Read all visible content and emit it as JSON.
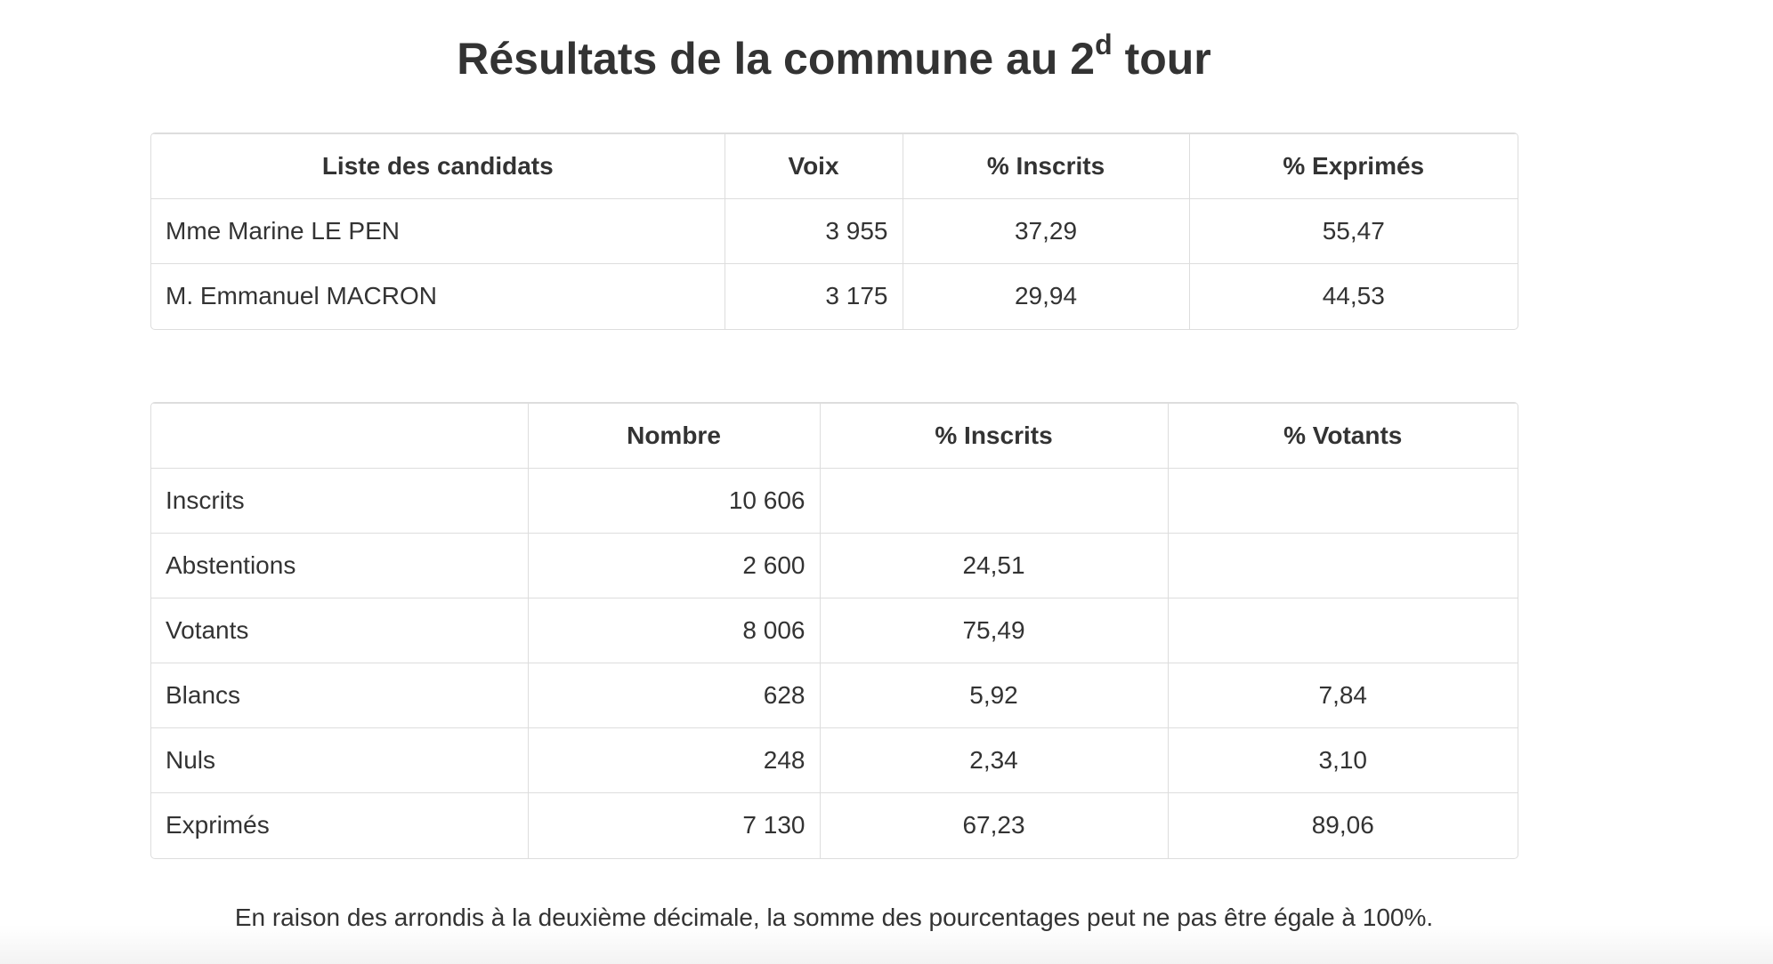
{
  "title": {
    "before": "Résultats de la commune au 2",
    "sup": "d",
    "after": " tour"
  },
  "candidates_table": {
    "header": [
      "Liste des candidats",
      "Voix",
      "% Inscrits",
      "% Exprimés"
    ],
    "rows": [
      [
        "Mme Marine LE PEN",
        "3 955",
        "37,29",
        "55,47"
      ],
      [
        "M. Emmanuel MACRON",
        "3 175",
        "29,94",
        "44,53"
      ]
    ]
  },
  "participation_table": {
    "header": [
      null,
      "Nombre",
      "% Inscrits",
      "% Votants"
    ],
    "rows": [
      [
        "Inscrits",
        "10 606",
        null,
        null
      ],
      [
        "Abstentions",
        "2 600",
        "24,51",
        null
      ],
      [
        "Votants",
        "8 006",
        "75,49",
        null
      ],
      [
        "Blancs",
        "628",
        "5,92",
        "7,84"
      ],
      [
        "Nuls",
        "248",
        "2,34",
        "3,10"
      ],
      [
        "Exprimés",
        "7 130",
        "67,23",
        "89,06"
      ]
    ]
  },
  "footnote": "En raison des arrondis à la deuxième décimale, la somme des pourcentages peut ne pas être égale à 100%."
}
